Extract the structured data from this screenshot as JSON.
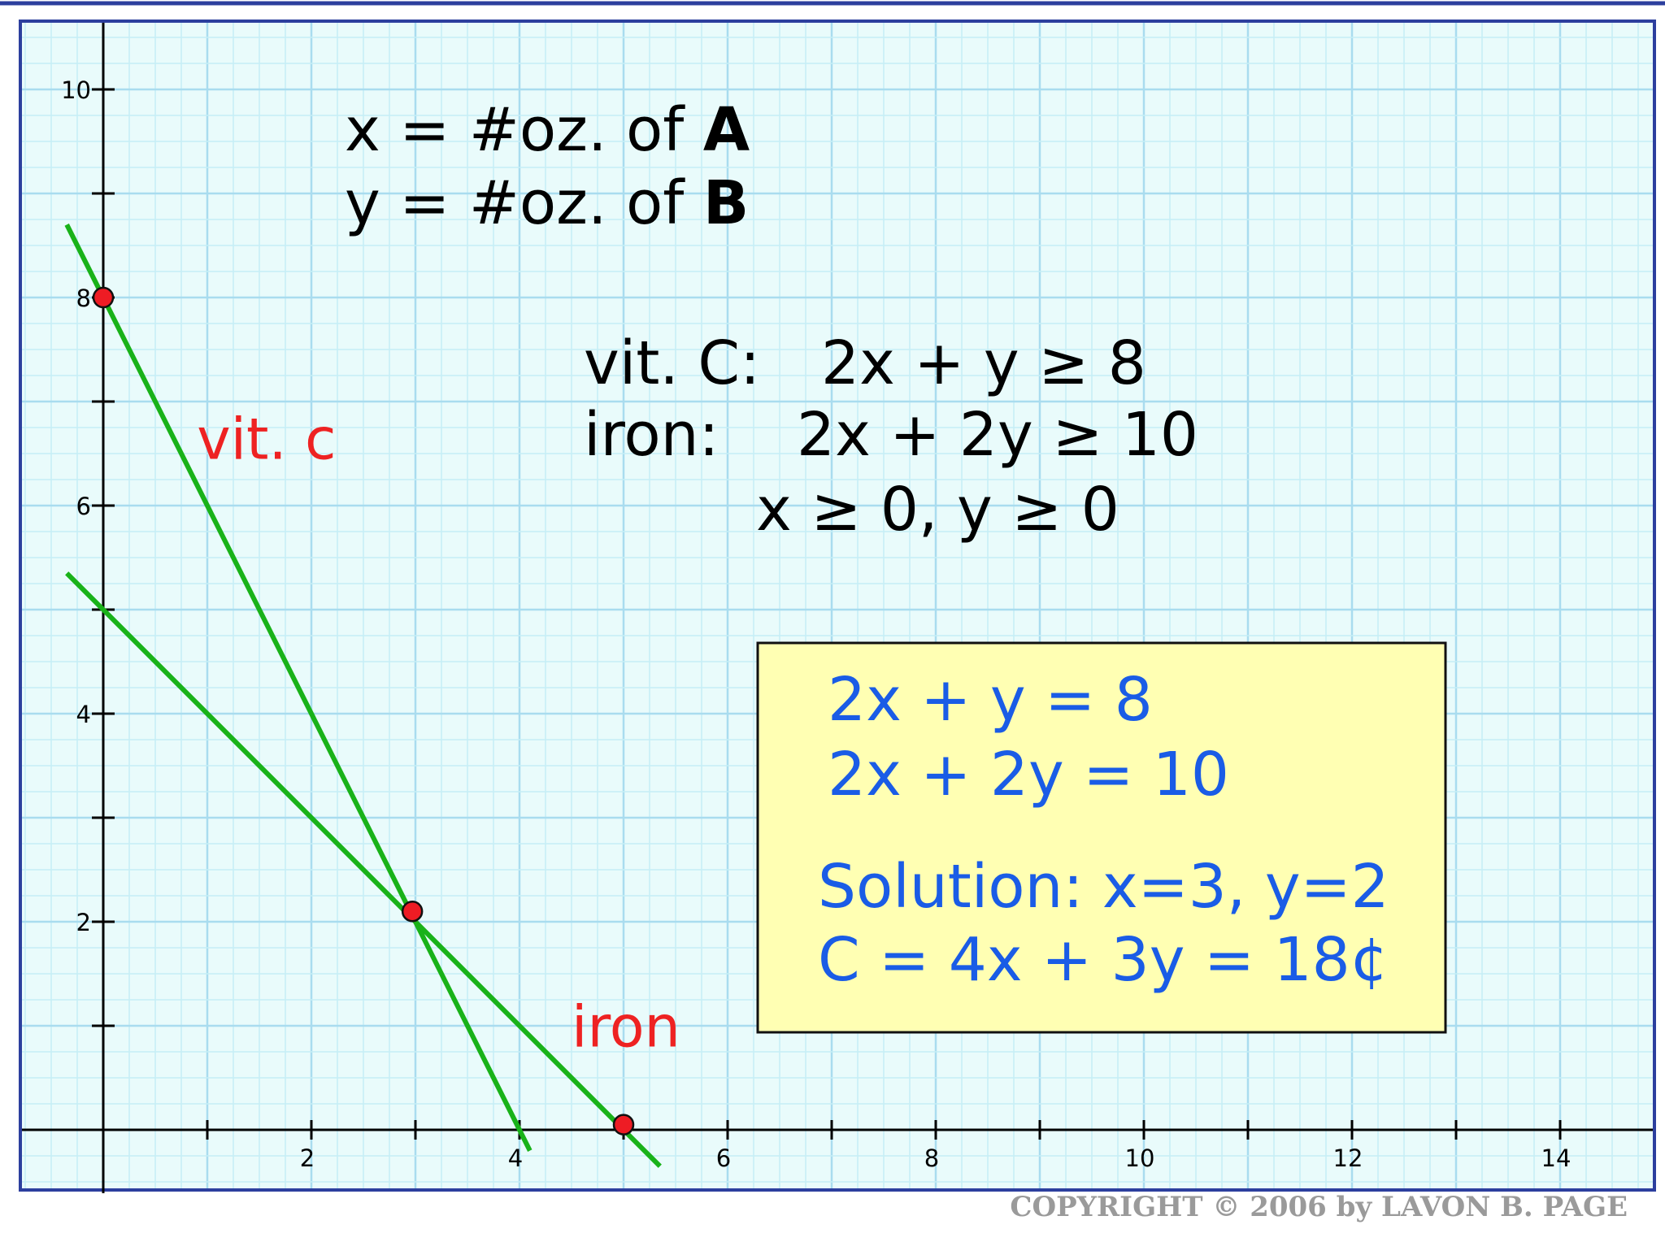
{
  "definitions": {
    "x_def": {
      "prefix": "x = #oz. of ",
      "bold": "A"
    },
    "y_def": {
      "prefix": "y = #oz. of ",
      "bold": "B"
    }
  },
  "constraints": {
    "vitc": {
      "label": "vit. C:",
      "expr": "2x + y ≥ 8"
    },
    "iron": {
      "label": "iron:",
      "expr": "2x + 2y ≥ 10"
    },
    "nonneg": "x ≥ 0, y ≥ 0"
  },
  "solution_box": {
    "eq1": "2x + y = 8",
    "eq2": "2x + 2y = 10",
    "solution": "Solution: x=3, y=2",
    "cost": "C = 4x + 3y = 18¢"
  },
  "copyright": "COPYRIGHT © 2006 by LAVON B. PAGE",
  "chart_data": {
    "type": "line",
    "xlim": [
      -0.8,
      14.8
    ],
    "ylim": [
      -0.3,
      10.5
    ],
    "grid": true,
    "x_ticks": [
      1,
      2,
      3,
      4,
      5,
      6,
      7,
      8,
      9,
      10,
      11,
      12,
      13,
      14
    ],
    "y_ticks": [
      1,
      2,
      3,
      4,
      5,
      6,
      7,
      8,
      9,
      10
    ],
    "x_tick_labels": [
      {
        "x": 2,
        "label": "2"
      },
      {
        "x": 4,
        "label": "4"
      },
      {
        "x": 6,
        "label": "6"
      },
      {
        "x": 8,
        "label": "8"
      },
      {
        "x": 10,
        "label": "10"
      },
      {
        "x": 12,
        "label": "12"
      },
      {
        "x": 14,
        "label": "14"
      }
    ],
    "y_tick_labels": [
      {
        "y": 2,
        "label": "2"
      },
      {
        "y": 4,
        "label": "4"
      },
      {
        "y": 6,
        "label": "6"
      },
      {
        "y": 8,
        "label": "8"
      },
      {
        "y": 10,
        "label": "10"
      }
    ],
    "series": [
      {
        "name": "vit. c",
        "equation": "2x + y = 8",
        "color": "#19b219",
        "x": [
          -0.35,
          4.1
        ],
        "y": [
          8.7,
          -0.2
        ]
      },
      {
        "name": "iron",
        "equation": "2x + 2y = 10",
        "color": "#19b219",
        "x": [
          -0.35,
          5.35
        ],
        "y": [
          5.35,
          -0.35
        ]
      }
    ],
    "points": [
      {
        "x": 0,
        "y": 8
      },
      {
        "x": 2.97,
        "y": 2.1
      },
      {
        "x": 5,
        "y": 0.05
      }
    ],
    "line_labels": [
      {
        "text": "vit. c",
        "x": 0.9,
        "y": 6.45
      },
      {
        "text": "iron",
        "x": 4.5,
        "y": 0.8
      }
    ]
  }
}
